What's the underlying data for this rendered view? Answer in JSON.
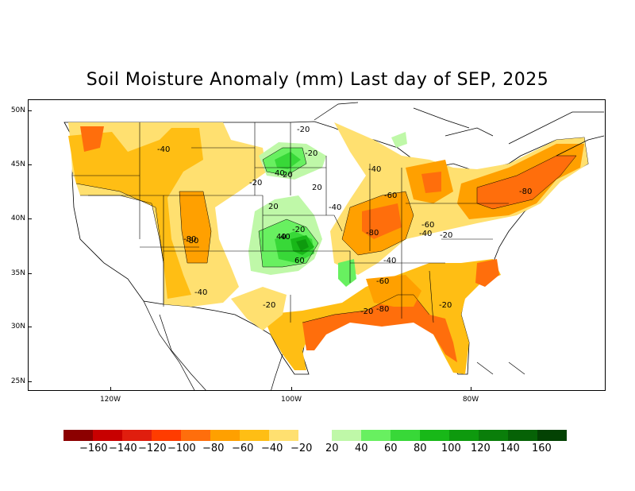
{
  "title": "Soil Moisture Anomaly (mm) Last day of SEP, 2025",
  "axes": {
    "lat_labels": [
      "50N",
      "45N",
      "40N",
      "35N",
      "30N",
      "25N"
    ],
    "lon_labels": [
      "120W",
      "100W",
      "80W"
    ]
  },
  "legend": {
    "dry_colors": [
      "#8c0000",
      "#c80000",
      "#e01e0e",
      "#ff3c00",
      "#ff6e0c",
      "#ffa000",
      "#ffbe14",
      "#ffe070"
    ],
    "wet_colors": [
      "#bff8a8",
      "#68f060",
      "#38d838",
      "#18b818",
      "#0e9a0e",
      "#0a7e0a",
      "#066206",
      "#034203"
    ],
    "labels": [
      "−160",
      "−140",
      "−120",
      "−100",
      "−80",
      "−60",
      "−40",
      "−20",
      "20",
      "40",
      "60",
      "80",
      "100",
      "120",
      "140",
      "160"
    ]
  },
  "contour_labels": [
    "-40",
    "-20",
    "-20",
    "-40",
    "-20",
    "20",
    "-20",
    "-40",
    "-60",
    "40",
    "-80",
    "20",
    "40",
    "20",
    "-80",
    "-60",
    "-40",
    "-20",
    "40",
    "-80",
    "60",
    "-40",
    "-20",
    "-60",
    "-40",
    "-20",
    "-80",
    "-20",
    "-80"
  ]
}
